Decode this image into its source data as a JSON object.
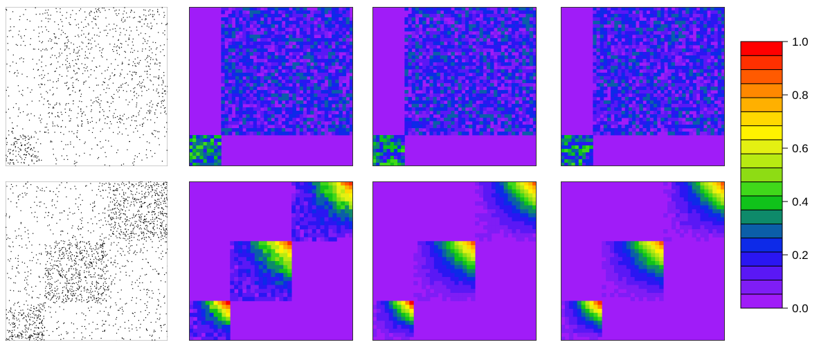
{
  "chart_data": {
    "type": "heatmap",
    "title": "",
    "xlabel": "",
    "ylabel": "",
    "panels": [
      {
        "row": 1,
        "col": 1,
        "kind": "adjacency",
        "blocks": [
          {
            "from": 0.0,
            "to": 0.2
          },
          {
            "from": 0.2,
            "to": 1.0
          }
        ]
      },
      {
        "row": 1,
        "col": 2,
        "kind": "probability",
        "blocks": [
          {
            "from": 0.0,
            "to": 0.2
          },
          {
            "from": 0.2,
            "to": 1.0
          }
        ]
      },
      {
        "row": 1,
        "col": 3,
        "kind": "probability",
        "blocks": [
          {
            "from": 0.0,
            "to": 0.2
          },
          {
            "from": 0.2,
            "to": 1.0
          }
        ]
      },
      {
        "row": 1,
        "col": 4,
        "kind": "probability",
        "blocks": [
          {
            "from": 0.0,
            "to": 0.2
          },
          {
            "from": 0.2,
            "to": 1.0
          }
        ]
      },
      {
        "row": 2,
        "col": 1,
        "kind": "adjacency",
        "blocks": [
          {
            "from": 0.0,
            "to": 0.24
          },
          {
            "from": 0.24,
            "to": 0.63
          },
          {
            "from": 0.63,
            "to": 1.0
          }
        ]
      },
      {
        "row": 2,
        "col": 2,
        "kind": "probability",
        "blocks": [
          {
            "from": 0.0,
            "to": 0.24
          },
          {
            "from": 0.24,
            "to": 0.63
          },
          {
            "from": 0.63,
            "to": 1.0
          }
        ]
      },
      {
        "row": 2,
        "col": 3,
        "kind": "probability",
        "blocks": [
          {
            "from": 0.0,
            "to": 0.24
          },
          {
            "from": 0.24,
            "to": 0.63
          },
          {
            "from": 0.63,
            "to": 1.0
          }
        ]
      },
      {
        "row": 2,
        "col": 4,
        "kind": "probability",
        "blocks": [
          {
            "from": 0.0,
            "to": 0.24
          },
          {
            "from": 0.24,
            "to": 0.63
          },
          {
            "from": 0.63,
            "to": 1.0
          }
        ]
      }
    ],
    "colorbar": {
      "range": [
        0.0,
        1.0
      ],
      "ticks": [
        "0.0",
        "0.2",
        "0.4",
        "0.6",
        "0.8",
        "1.0"
      ],
      "tick_values": [
        0.0,
        0.2,
        0.4,
        0.6,
        0.8,
        1.0
      ],
      "colors": [
        "#a01cf8",
        "#7f1df5",
        "#5a18f5",
        "#2a16f2",
        "#0d2ae8",
        "#0b5ea8",
        "#0e8a6a",
        "#10c21a",
        "#40d81a",
        "#8edc14",
        "#b8ea12",
        "#e4f012",
        "#fff200",
        "#ffd800",
        "#ffb000",
        "#ff8800",
        "#ff5a00",
        "#ff3000",
        "#ff0000"
      ]
    }
  }
}
